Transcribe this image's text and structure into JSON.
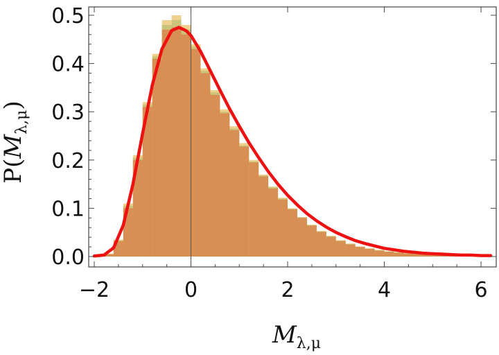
{
  "chart_data": {
    "type": "bar",
    "title": "",
    "xlabel": "M_{λ,μ}",
    "ylabel": "P(M_{λ,μ})",
    "xlabel_text": {
      "var": "M",
      "sub": "λ,μ"
    },
    "ylabel_text": {
      "prefix": "P(",
      "var": "M",
      "sub": "λ,μ",
      "suffix": ")"
    },
    "xlim": [
      -2.0,
      6.2
    ],
    "ylim": [
      0,
      0.5
    ],
    "xticks": [
      "−2",
      "0",
      "2",
      "4",
      "6"
    ],
    "yticks": [
      "0.0",
      "0.1",
      "0.2",
      "0.3",
      "0.4",
      "0.5"
    ],
    "grid": false,
    "series": [
      {
        "kind": "histogram",
        "color": "#e8c26a",
        "opacity": 0.75,
        "x": [
          -1.9,
          -1.7,
          -1.5,
          -1.3,
          -1.1,
          -0.9,
          -0.7,
          -0.5,
          -0.3,
          -0.1,
          0.1,
          0.3,
          0.5,
          0.7,
          0.9,
          1.1,
          1.3,
          1.5,
          1.7,
          1.9,
          2.1,
          2.3,
          2.5,
          2.7,
          2.9,
          3.1,
          3.3,
          3.5,
          3.7,
          3.9,
          4.1,
          4.3,
          4.5,
          4.7,
          4.9,
          5.1,
          5.3,
          5.5,
          5.7,
          5.9,
          6.1
        ],
        "values": [
          0.0,
          0.006,
          0.035,
          0.11,
          0.21,
          0.32,
          0.42,
          0.49,
          0.5,
          0.48,
          0.44,
          0.39,
          0.345,
          0.305,
          0.27,
          0.235,
          0.2,
          0.17,
          0.145,
          0.122,
          0.1,
          0.082,
          0.066,
          0.053,
          0.043,
          0.034,
          0.027,
          0.021,
          0.017,
          0.014,
          0.011,
          0.009,
          0.007,
          0.006,
          0.005,
          0.004,
          0.003,
          0.002,
          0.002,
          0.001,
          0.001
        ]
      },
      {
        "kind": "histogram",
        "color": "#88a850",
        "opacity": 0.35,
        "x": [
          -1.9,
          -1.7,
          -1.5,
          -1.3,
          -1.1,
          -0.9,
          -0.7,
          -0.5,
          -0.3,
          -0.1,
          0.1,
          0.3,
          0.5,
          0.7,
          0.9,
          1.1,
          1.3,
          1.5,
          1.7,
          1.9,
          2.1,
          2.3,
          2.5,
          2.7,
          2.9,
          3.1,
          3.3,
          3.5,
          3.7,
          3.9,
          4.1,
          4.3,
          4.5,
          4.7,
          4.9,
          5.1,
          5.3,
          5.5,
          5.7,
          5.9,
          6.1
        ],
        "values": [
          0.0,
          0.005,
          0.033,
          0.105,
          0.205,
          0.315,
          0.415,
          0.48,
          0.49,
          0.47,
          0.435,
          0.385,
          0.34,
          0.3,
          0.265,
          0.23,
          0.197,
          0.168,
          0.143,
          0.12,
          0.099,
          0.081,
          0.065,
          0.052,
          0.042,
          0.033,
          0.026,
          0.02,
          0.016,
          0.013,
          0.01,
          0.008,
          0.007,
          0.005,
          0.004,
          0.003,
          0.003,
          0.002,
          0.001,
          0.001,
          0.001
        ]
      },
      {
        "kind": "histogram",
        "color": "#d9824a",
        "opacity": 0.8,
        "x": [
          -1.9,
          -1.7,
          -1.5,
          -1.3,
          -1.1,
          -0.9,
          -0.7,
          -0.5,
          -0.3,
          -0.1,
          0.1,
          0.3,
          0.5,
          0.7,
          0.9,
          1.1,
          1.3,
          1.5,
          1.7,
          1.9,
          2.1,
          2.3,
          2.5,
          2.7,
          2.9,
          3.1,
          3.3,
          3.5,
          3.7,
          3.9,
          4.1,
          4.3,
          4.5,
          4.7,
          4.9,
          5.1,
          5.3,
          5.5,
          5.7,
          5.9,
          6.1
        ],
        "values": [
          0.0,
          0.005,
          0.032,
          0.1,
          0.2,
          0.31,
          0.41,
          0.47,
          0.475,
          0.46,
          0.43,
          0.38,
          0.335,
          0.297,
          0.262,
          0.228,
          0.195,
          0.166,
          0.141,
          0.118,
          0.098,
          0.08,
          0.064,
          0.051,
          0.041,
          0.032,
          0.025,
          0.02,
          0.016,
          0.012,
          0.01,
          0.008,
          0.006,
          0.005,
          0.004,
          0.003,
          0.002,
          0.002,
          0.001,
          0.001,
          0.001
        ]
      },
      {
        "kind": "line",
        "color": "#ee1111",
        "x": [
          -2.0,
          -1.8,
          -1.6,
          -1.4,
          -1.2,
          -1.0,
          -0.8,
          -0.6,
          -0.4,
          -0.25,
          -0.1,
          0.0,
          0.2,
          0.4,
          0.6,
          0.8,
          1.0,
          1.2,
          1.4,
          1.6,
          1.8,
          2.0,
          2.2,
          2.4,
          2.6,
          2.8,
          3.0,
          3.2,
          3.4,
          3.6,
          3.8,
          4.0,
          4.2,
          4.4,
          4.6,
          4.8,
          5.0,
          5.2,
          5.4,
          5.6,
          5.8,
          6.0,
          6.2
        ],
        "values": [
          0.001,
          0.003,
          0.018,
          0.065,
          0.15,
          0.255,
          0.355,
          0.43,
          0.468,
          0.475,
          0.468,
          0.458,
          0.425,
          0.385,
          0.345,
          0.306,
          0.27,
          0.236,
          0.205,
          0.176,
          0.15,
          0.127,
          0.107,
          0.089,
          0.074,
          0.061,
          0.05,
          0.041,
          0.033,
          0.027,
          0.022,
          0.017,
          0.014,
          0.011,
          0.009,
          0.007,
          0.006,
          0.005,
          0.004,
          0.003,
          0.003,
          0.002,
          0.002
        ]
      }
    ]
  }
}
